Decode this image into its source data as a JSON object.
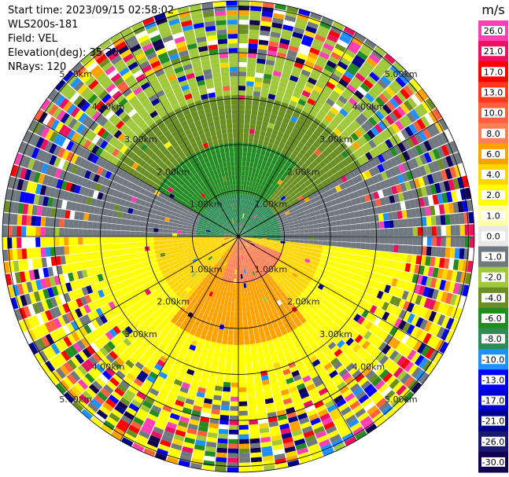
{
  "header": {
    "start_time": "Start time: 2023/09/15 02:58:02",
    "instrument": "WLS200s-181",
    "field": "Field: VEL",
    "elevation": "Elevation(deg): 35.30",
    "nrays": "NRays: 120"
  },
  "plot": {
    "type": "ppi",
    "nrays": 120,
    "range_rings_km": [
      1,
      2,
      3,
      4,
      5
    ],
    "ring_labels": [
      "1.00km",
      "2.00km",
      "3.00km",
      "4.00km",
      "5.00km"
    ],
    "spoke_angles_deg": [
      0,
      30,
      60,
      90,
      120,
      150,
      180,
      210,
      240,
      270,
      300,
      330
    ]
  },
  "colorbar": {
    "unit": "m/s",
    "ticks": [
      "26.0",
      "21.0",
      "17.0",
      "13.0",
      "10.0",
      "8.0",
      "6.0",
      "4.0",
      "2.0",
      "1.0",
      "0.0",
      "-1.0",
      "-2.0",
      "-4.0",
      "-6.0",
      "-8.0",
      "-10.0",
      "-13.0",
      "-17.0",
      "-21.0",
      "-26.0",
      "-30.0"
    ],
    "colors": [
      "#ff3fb4",
      "#ee1060",
      "#ff0000",
      "#ff3a1f",
      "#ff6040",
      "#ff7f55",
      "#ffa200",
      "#ffd500",
      "#ffff00",
      "#ffffaa",
      "#e8e8e8",
      "#707880",
      "#a0c83a",
      "#6b8e23",
      "#228b22",
      "#2e8b57",
      "#1e90ff",
      "#0000ff",
      "#0000cd",
      "#00008b",
      "#191970",
      "#120050"
    ]
  }
}
